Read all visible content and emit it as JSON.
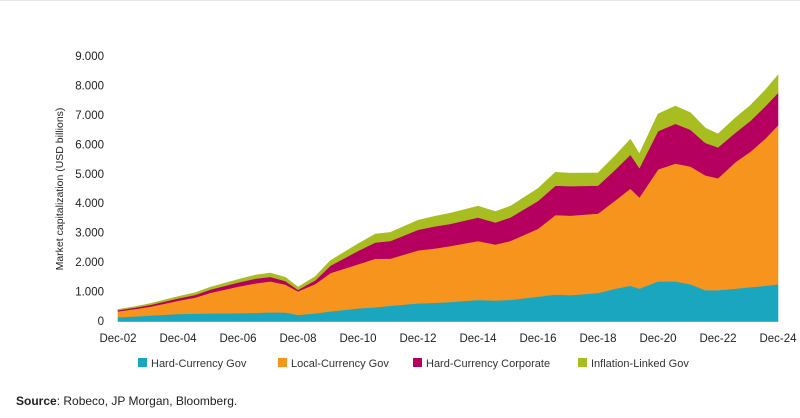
{
  "chart_data": {
    "type": "area",
    "stacked": true,
    "title": "",
    "xlabel": "",
    "ylabel": "Market capitalization (USD billions)",
    "ylim": [
      0,
      9000
    ],
    "yticks": [
      0,
      1000,
      2000,
      3000,
      4000,
      5000,
      6000,
      7000,
      8000,
      9000
    ],
    "ytick_labels": [
      "0",
      "1.000",
      "2.000",
      "3.000",
      "4.000",
      "5.000",
      "6.000",
      "7.000",
      "8.000",
      "9.000"
    ],
    "xlim": [
      2002.92,
      2024.92
    ],
    "xticks": [
      2002.92,
      2004.92,
      2006.92,
      2008.92,
      2010.92,
      2012.92,
      2014.92,
      2016.92,
      2018.92,
      2020.92,
      2022.92,
      2024.92
    ],
    "xtick_labels": [
      "Dec-02",
      "Dec-04",
      "Dec-06",
      "Dec-08",
      "Dec-10",
      "Dec-12",
      "Dec-14",
      "Dec-16",
      "Dec-18",
      "Dec-20",
      "Dec-22",
      "Dec-24"
    ],
    "grid": false,
    "legend_position": "bottom",
    "x": [
      2002.92,
      2003.5,
      2004.0,
      2004.92,
      2005.5,
      2006.0,
      2006.92,
      2007.5,
      2008.0,
      2008.5,
      2008.92,
      2009.5,
      2010.0,
      2010.92,
      2011.5,
      2012.0,
      2012.92,
      2013.5,
      2014.0,
      2014.92,
      2015.5,
      2016.0,
      2016.92,
      2017.5,
      2018.0,
      2018.92,
      2019.5,
      2020.0,
      2020.3,
      2020.92,
      2021.5,
      2022.0,
      2022.5,
      2022.92,
      2023.5,
      2024.0,
      2024.5,
      2024.92
    ],
    "series": [
      {
        "name": "Hard-Currency Gov",
        "color": "#1aa6bf",
        "values": [
          130,
          160,
          190,
          240,
          250,
          260,
          270,
          280,
          300,
          290,
          210,
          260,
          330,
          430,
          470,
          520,
          600,
          620,
          650,
          720,
          700,
          720,
          830,
          900,
          880,
          950,
          1100,
          1200,
          1100,
          1350,
          1350,
          1250,
          1050,
          1050,
          1100,
          1150,
          1200,
          1250
        ]
      },
      {
        "name": "Local-Currency Gov",
        "color": "#f7941d",
        "values": [
          200,
          250,
          300,
          450,
          550,
          700,
          900,
          1000,
          1050,
          950,
          800,
          1000,
          1300,
          1500,
          1650,
          1600,
          1800,
          1850,
          1900,
          2000,
          1900,
          2000,
          2300,
          2700,
          2700,
          2700,
          3000,
          3300,
          3100,
          3800,
          4000,
          4000,
          3900,
          3800,
          4300,
          4600,
          5000,
          5400
        ]
      },
      {
        "name": "Hard-Currency Corporate",
        "color": "#b5005f",
        "values": [
          40,
          50,
          60,
          80,
          90,
          110,
          140,
          160,
          150,
          120,
          50,
          130,
          250,
          450,
          550,
          600,
          700,
          750,
          750,
          800,
          750,
          800,
          950,
          1000,
          1000,
          950,
          1050,
          1150,
          1000,
          1300,
          1350,
          1250,
          1100,
          1050,
          1000,
          1050,
          1100,
          1100
        ]
      },
      {
        "name": "Inflation-Linked Gov",
        "color": "#a8bd1f",
        "values": [
          25,
          30,
          40,
          60,
          70,
          80,
          100,
          120,
          130,
          120,
          90,
          120,
          170,
          240,
          280,
          290,
          320,
          340,
          360,
          380,
          370,
          380,
          420,
          450,
          440,
          430,
          470,
          520,
          480,
          580,
          600,
          570,
          500,
          450,
          500,
          520,
          550,
          600
        ]
      }
    ]
  },
  "source": {
    "label": "Source",
    "text": ": Robeco, JP Morgan, Bloomberg."
  }
}
